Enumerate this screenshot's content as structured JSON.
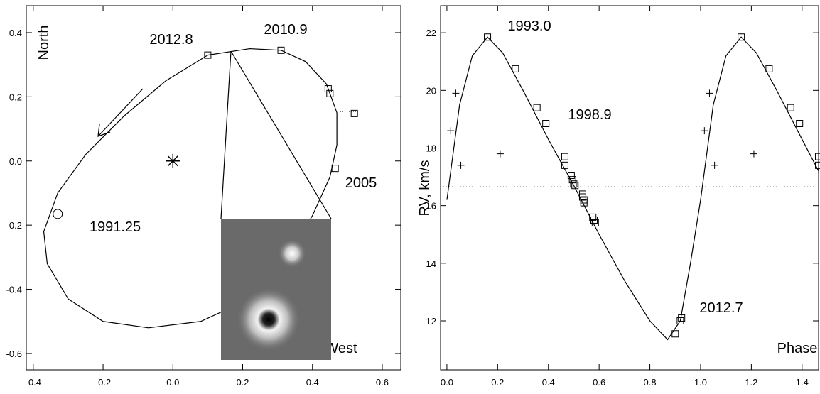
{
  "chart_data": [
    {
      "type": "scatter",
      "xlabel": "West",
      "ylabel": "North",
      "xlim": [
        -0.42,
        0.653
      ],
      "ylim": [
        -0.651,
        0.484
      ],
      "xticks": [
        -0.4,
        -0.2,
        {
          "value": 0,
          "label": "0.0"
        },
        0.2,
        0.4,
        0.6
      ],
      "yticks": [
        -0.6,
        -0.4,
        -0.2,
        {
          "value": 0,
          "label": "0.0"
        },
        0.2,
        0.4
      ],
      "color": "#000000",
      "annotations": [
        "2012.8",
        "2010.9",
        "2005",
        "1991.25"
      ],
      "series": [
        {
          "marker": "line",
          "x": [
            0.1,
            0.22,
            0.31,
            0.38,
            0.44,
            0.47,
            0.47,
            0.45,
            0.4,
            0.32,
            0.2,
            0.08,
            -0.07,
            -0.2,
            -0.3,
            -0.36,
            -0.37,
            -0.33,
            -0.25,
            -0.14,
            -0.02,
            0.1
          ],
          "values": [
            0.33,
            0.35,
            0.345,
            0.31,
            0.24,
            0.15,
            0.05,
            -0.05,
            -0.17,
            -0.32,
            -0.44,
            -0.5,
            -0.52,
            -0.5,
            -0.43,
            -0.32,
            -0.22,
            -0.1,
            0.02,
            0.14,
            0.25,
            0.33
          ]
        },
        {
          "marker": "square",
          "x": [
            0.1,
            0.31,
            0.445,
            0.45,
            0.52,
            0.465
          ],
          "values": [
            0.33,
            0.345,
            0.225,
            0.21,
            0.148,
            -0.023
          ]
        },
        {
          "marker": "circle",
          "x": [
            -0.33
          ],
          "values": [
            -0.165
          ]
        },
        {
          "marker": "asterisk",
          "x": [
            0
          ],
          "values": [
            0
          ]
        }
      ]
    },
    {
      "type": "scatter",
      "xlabel": "Phase",
      "ylabel": "RV, km/s",
      "xlim": [
        -0.025,
        1.465
      ],
      "ylim": [
        10.3,
        22.94
      ],
      "xticks": [
        {
          "value": 0,
          "label": "0.0"
        },
        0.2,
        0.4,
        0.6,
        0.8,
        {
          "value": 1,
          "label": "1.0"
        },
        1.2,
        1.4
      ],
      "yticks": [
        12,
        14,
        16,
        18,
        20,
        22
      ],
      "color": "#000000",
      "annotations": [
        "1993.0",
        "1998.9",
        "2012.7"
      ],
      "reference_line": 16.65,
      "series": [
        {
          "marker": "line",
          "x": [
            0,
            0.05,
            0.1,
            0.16,
            0.22,
            0.3,
            0.4,
            0.5,
            0.6,
            0.7,
            0.8,
            0.87,
            0.92,
            0.96,
            1.0,
            1.05,
            1.1,
            1.16,
            1.22,
            1.3,
            1.4,
            1.465
          ],
          "values": [
            16.2,
            19.5,
            21.2,
            21.85,
            21.3,
            20.0,
            18.3,
            16.7,
            15.0,
            13.4,
            12.0,
            11.35,
            12.0,
            14.0,
            16.2,
            19.5,
            21.2,
            21.85,
            21.3,
            20.0,
            18.3,
            17.2
          ]
        },
        {
          "marker": "square",
          "x": [
            0.16,
            0.27,
            0.355,
            0.39,
            0.465,
            0.465,
            0.49,
            0.495,
            0.5,
            0.505,
            0.535,
            0.535,
            0.54,
            0.54,
            0.575,
            0.58,
            0.585,
            0.9,
            0.92,
            0.925,
            1.16,
            1.27,
            1.355,
            1.39,
            1.465,
            1.465
          ],
          "values": [
            21.85,
            20.75,
            19.4,
            18.85,
            17.7,
            17.4,
            17.05,
            16.9,
            16.75,
            16.7,
            16.4,
            16.3,
            16.2,
            16.1,
            15.6,
            15.5,
            15.4,
            11.55,
            12.0,
            12.1,
            21.85,
            20.75,
            19.4,
            18.85,
            17.7,
            17.4
          ]
        },
        {
          "marker": "plus",
          "x": [
            0.015,
            0.035,
            0.055,
            0.21,
            1.015,
            1.035,
            1.055,
            1.21
          ],
          "values": [
            18.6,
            19.9,
            17.4,
            17.8,
            18.6,
            19.9,
            17.4,
            17.8
          ]
        }
      ]
    }
  ]
}
